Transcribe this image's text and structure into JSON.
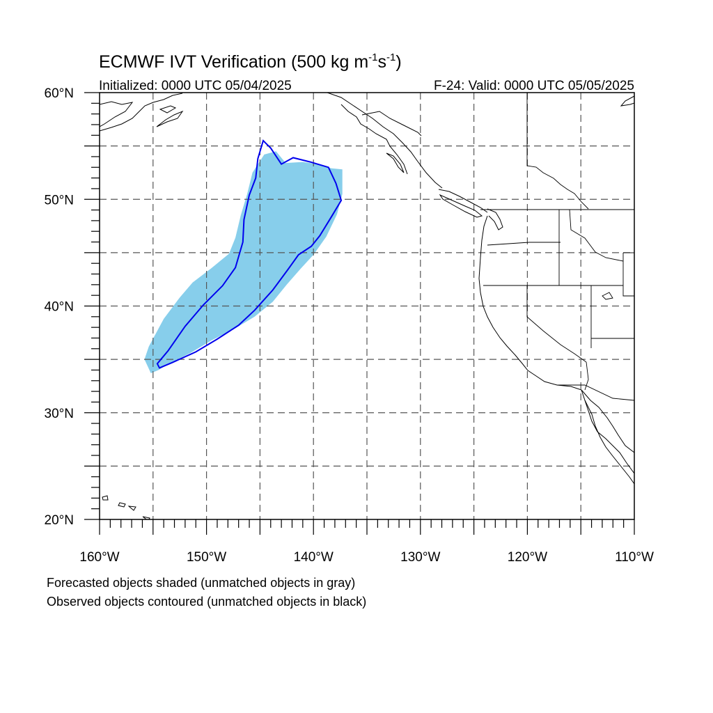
{
  "header": {
    "title_main": "ECMWF IVT Verification (500 kg m",
    "title_sup1": "-1",
    "title_mid": "s",
    "title_sup2": "-1",
    "title_end": ")",
    "initialized": "Initialized: 0000 UTC 05/04/2025",
    "valid": "F-24: Valid: 0000 UTC 05/05/2025"
  },
  "map": {
    "lon_range": [
      -160,
      -110
    ],
    "lat_range": [
      20,
      60
    ],
    "lat_labels": [
      {
        "lat": 60,
        "label": "60°N"
      },
      {
        "lat": 50,
        "label": "50°N"
      },
      {
        "lat": 40,
        "label": "40°N"
      },
      {
        "lat": 30,
        "label": "30°N"
      },
      {
        "lat": 20,
        "label": "20°N"
      }
    ],
    "lon_labels": [
      {
        "lon": -160,
        "label": "160°W"
      },
      {
        "lon": -150,
        "label": "150°W"
      },
      {
        "lon": -140,
        "label": "140°W"
      },
      {
        "lon": -130,
        "label": "130°W"
      },
      {
        "lon": -120,
        "label": "120°W"
      },
      {
        "lon": -110,
        "label": "110°W"
      }
    ],
    "gridlines": "dashed every 5°",
    "forecast_object_color": "#87ceeb",
    "observed_contour_color": "#0000ee",
    "forecast_object": [
      [
        -155.2,
        33.7
      ],
      [
        -154.5,
        34.0
      ],
      [
        -153.5,
        34.6
      ],
      [
        -151.5,
        35.6
      ],
      [
        -149.5,
        36.8
      ],
      [
        -147.5,
        37.8
      ],
      [
        -145.5,
        39.0
      ],
      [
        -143.8,
        40.4
      ],
      [
        -142.5,
        42.0
      ],
      [
        -141.2,
        43.5
      ],
      [
        -140.0,
        44.8
      ],
      [
        -138.8,
        46.5
      ],
      [
        -137.8,
        48.6
      ],
      [
        -137.3,
        50.5
      ],
      [
        -137.3,
        52.8
      ],
      [
        -138.3,
        52.9
      ],
      [
        -139.6,
        53.3
      ],
      [
        -141.0,
        53.5
      ],
      [
        -142.6,
        53.4
      ],
      [
        -143.5,
        54.5
      ],
      [
        -144.6,
        54.2
      ],
      [
        -145.7,
        52.5
      ],
      [
        -146.2,
        50.5
      ],
      [
        -146.8,
        48.5
      ],
      [
        -147.3,
        46.4
      ],
      [
        -147.9,
        44.9
      ],
      [
        -149.6,
        43.5
      ],
      [
        -151.3,
        42.2
      ],
      [
        -152.5,
        40.8
      ],
      [
        -154.0,
        38.8
      ],
      [
        -155.4,
        36.2
      ],
      [
        -155.8,
        35.0
      ]
    ],
    "observed_object": [
      [
        -154.4,
        34.2
      ],
      [
        -153.2,
        34.7
      ],
      [
        -151.0,
        35.7
      ],
      [
        -149.0,
        36.9
      ],
      [
        -147.0,
        38.2
      ],
      [
        -145.5,
        39.6
      ],
      [
        -143.8,
        41.5
      ],
      [
        -142.4,
        43.4
      ],
      [
        -141.4,
        44.8
      ],
      [
        -140.2,
        45.6
      ],
      [
        -139.4,
        46.6
      ],
      [
        -138.3,
        48.4
      ],
      [
        -137.4,
        49.9
      ],
      [
        -137.9,
        51.5
      ],
      [
        -138.6,
        53.0
      ],
      [
        -140.3,
        53.5
      ],
      [
        -141.9,
        53.9
      ],
      [
        -143.0,
        53.3
      ],
      [
        -144.0,
        54.8
      ],
      [
        -144.7,
        55.5
      ],
      [
        -145.2,
        53.8
      ],
      [
        -145.4,
        52.0
      ],
      [
        -146.0,
        50.4
      ],
      [
        -146.5,
        48.1
      ],
      [
        -146.6,
        46.0
      ],
      [
        -147.3,
        43.6
      ],
      [
        -148.5,
        41.9
      ],
      [
        -150.3,
        40.1
      ],
      [
        -152.0,
        38.1
      ],
      [
        -153.6,
        35.8
      ],
      [
        -154.6,
        34.6
      ]
    ]
  },
  "footer": {
    "line1": "Forecasted objects shaded (unmatched objects in gray)",
    "line2": "Observed objects contoured (unmatched objects in black)"
  }
}
